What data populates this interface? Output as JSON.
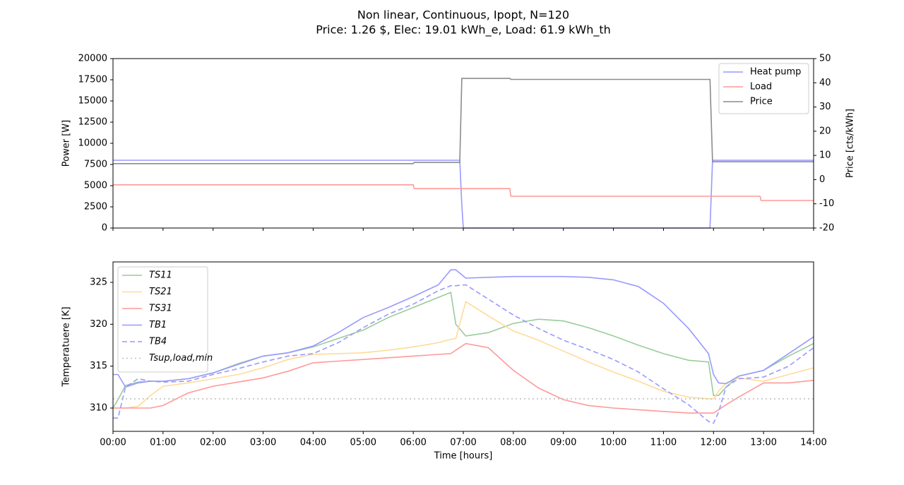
{
  "chart_data": [
    {
      "type": "line",
      "title": "Non linear, Continuous, Ipopt, N=120",
      "subtitle": "Price: 1.26 $, Elec: 19.01 kWh_e, Load: 61.9 kWh_th",
      "y_label": "Power [W]",
      "y2_label": "Price [cts/kWh]",
      "x": [
        0,
        6.0,
        6.02,
        6.93,
        6.97,
        7.0,
        7.93,
        7.95,
        11.93,
        11.98,
        12.93,
        12.95,
        14
      ],
      "series": [
        {
          "name": "Heat pump",
          "color": "#9999ff",
          "values": [
            8000,
            8000,
            8000,
            8000,
            2700,
            0,
            0,
            0,
            0,
            8000,
            8000,
            8000,
            8000
          ]
        },
        {
          "name": "Load",
          "color": "#ff9999",
          "values": [
            5100,
            5100,
            4650,
            4650,
            4650,
            4650,
            4650,
            3750,
            3750,
            3750,
            3750,
            3250,
            3250
          ]
        },
        {
          "name": "Price",
          "color": "#8c8c8c",
          "axis": "y2",
          "values": [
            6.6,
            6.6,
            7.1,
            7.1,
            41.8,
            41.8,
            41.8,
            41.4,
            41.4,
            7.4,
            7.4,
            7.4,
            7.4
          ]
        }
      ],
      "xlim": [
        0,
        14
      ],
      "xticks": [
        0,
        1,
        2,
        3,
        4,
        5,
        6,
        7,
        8,
        9,
        10,
        11,
        12,
        13,
        14
      ],
      "ylim": [
        0,
        20000
      ],
      "yticks": [
        0,
        2500,
        5000,
        7500,
        10000,
        12500,
        15000,
        17500,
        20000
      ],
      "y2lim": [
        -20,
        50
      ],
      "y2ticks": [
        -20,
        -10,
        0,
        10,
        20,
        30,
        40,
        50
      ],
      "legend": "upper right"
    },
    {
      "type": "line",
      "y_label": "Temperatuere [K]",
      "x_label": "Time [hours]",
      "x": [
        0,
        0.1,
        0.25,
        0.5,
        0.75,
        1,
        1.5,
        2,
        2.5,
        3,
        3.5,
        4,
        4.5,
        5,
        5.5,
        6,
        6.5,
        6.75,
        6.85,
        7.05,
        7.5,
        8,
        8.5,
        9,
        9.5,
        10,
        10.5,
        11,
        11.5,
        11.9,
        12,
        12.1,
        12.25,
        12.5,
        13,
        13.5,
        14
      ],
      "series": [
        {
          "name": "TS11",
          "color": "#99cc99",
          "values": [
            310,
            311,
            312.7,
            313.1,
            313.2,
            313.2,
            313.5,
            314.2,
            315.3,
            316.2,
            316.6,
            317.3,
            318.3,
            319.3,
            320.8,
            322,
            323.2,
            323.8,
            320,
            318.6,
            319,
            320.1,
            320.6,
            320.4,
            319.6,
            318.6,
            317.5,
            316.5,
            315.7,
            315.5,
            311.5,
            311.5,
            312.5,
            313.8,
            314.5,
            316.2,
            317.7
          ]
        },
        {
          "name": "TS21",
          "color": "#ffdb99",
          "values": [
            310,
            310,
            310,
            310.2,
            311.5,
            312.6,
            313,
            313.5,
            314,
            314.8,
            315.8,
            316.4,
            316.5,
            316.6,
            316.9,
            317.3,
            317.8,
            318.2,
            318.3,
            322.7,
            321,
            319.2,
            318.1,
            316.8,
            315.5,
            314.3,
            313.2,
            312,
            311.3,
            311.1,
            311.1,
            312,
            313,
            313.6,
            313.2,
            314,
            314.8
          ]
        },
        {
          "name": "TS31",
          "color": "#ff9999",
          "values": [
            310,
            310,
            310,
            310,
            310,
            310.3,
            311.8,
            312.6,
            313.1,
            313.6,
            314.4,
            315.4,
            315.6,
            315.8,
            316,
            316.2,
            316.4,
            316.5,
            316.9,
            317.7,
            317.2,
            314.5,
            312.4,
            311,
            310.3,
            310,
            309.8,
            309.6,
            309.4,
            309.4,
            309.4,
            309.8,
            310.4,
            311.3,
            313,
            313,
            313.3
          ]
        },
        {
          "name": "TB1",
          "color": "#9999ff",
          "values": [
            314,
            314,
            312.5,
            313,
            313.2,
            313.2,
            313.5,
            314.2,
            315.2,
            316.2,
            316.6,
            317.4,
            319,
            320.8,
            322,
            323.3,
            324.7,
            326.5,
            326.5,
            325.5,
            325.6,
            325.7,
            325.7,
            325.7,
            325.6,
            325.3,
            324.5,
            322.5,
            319.5,
            316.5,
            314,
            313,
            312.9,
            313.8,
            314.5,
            316.5,
            318.5
          ]
        },
        {
          "name": "TB4",
          "color": "#9999ff",
          "dash": "dashed",
          "values": [
            308.8,
            308.8,
            312.5,
            313.5,
            313.2,
            313.1,
            313.2,
            314,
            314.7,
            315.5,
            316.2,
            316.5,
            317.8,
            319.6,
            321.2,
            322.4,
            324,
            324.6,
            324.6,
            324.7,
            323,
            321.1,
            319.5,
            318.1,
            317,
            315.8,
            314.3,
            312.3,
            310.4,
            308.4,
            308.2,
            309.5,
            312.5,
            313.5,
            313.7,
            315,
            317.2
          ]
        },
        {
          "name": "Tsup,load,min",
          "color": "#c0c0c0",
          "dash": "dotted",
          "values": [
            311.1,
            311.1,
            311.1,
            311.1,
            311.1,
            311.1,
            311.1,
            311.1,
            311.1,
            311.1,
            311.1,
            311.1,
            311.1,
            311.1,
            311.1,
            311.1,
            311.1,
            311.1,
            311.1,
            311.1,
            311.1,
            311.1,
            311.1,
            311.1,
            311.1,
            311.1,
            311.1,
            311.1,
            311.1,
            311.1,
            311.1,
            311.1,
            311.1,
            311.1,
            311.1,
            311.1,
            311.1
          ]
        }
      ],
      "xlim": [
        0,
        14
      ],
      "xticks": [
        {
          "value": 0,
          "label": "00:00"
        },
        {
          "value": 1,
          "label": "01:00"
        },
        {
          "value": 2,
          "label": "02:00"
        },
        {
          "value": 3,
          "label": "03:00"
        },
        {
          "value": 4,
          "label": "04:00"
        },
        {
          "value": 5,
          "label": "05:00"
        },
        {
          "value": 6,
          "label": "06:00"
        },
        {
          "value": 7,
          "label": "07:00"
        },
        {
          "value": 8,
          "label": "08:00"
        },
        {
          "value": 9,
          "label": "09:00"
        },
        {
          "value": 10,
          "label": "10:00"
        },
        {
          "value": 11,
          "label": "11:00"
        },
        {
          "value": 12,
          "label": "12:00"
        },
        {
          "value": 13,
          "label": "13:00"
        },
        {
          "value": 14,
          "label": "14:00"
        }
      ],
      "ylim": [
        307.22,
        327.44
      ],
      "yticks": [
        310,
        315,
        320,
        325
      ],
      "legend": "upper left"
    }
  ]
}
